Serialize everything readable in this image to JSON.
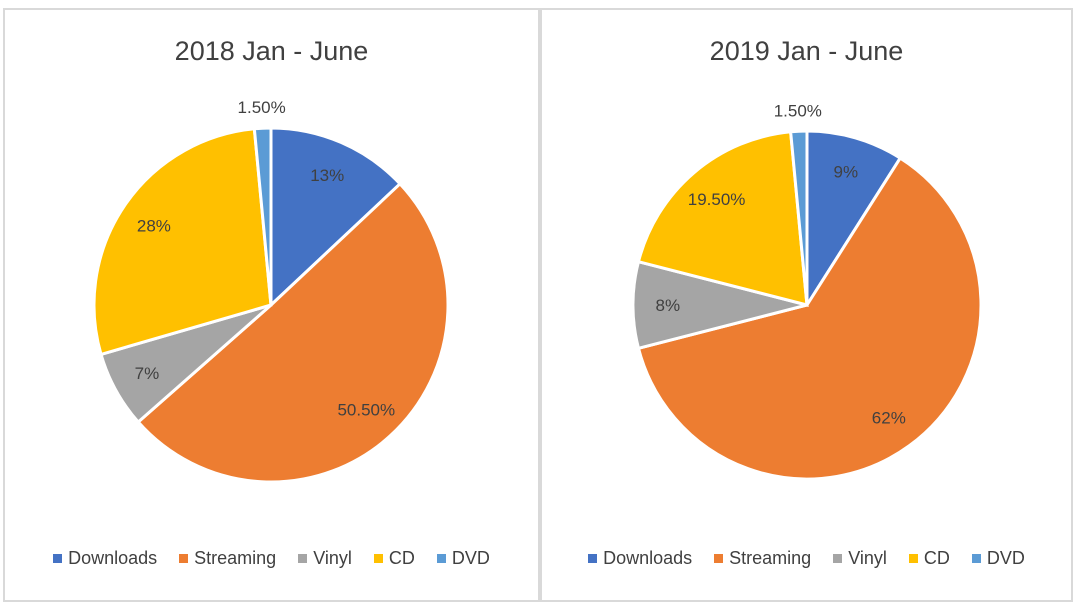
{
  "chart_data": [
    {
      "type": "pie",
      "title": "2018 Jan - June",
      "categories": [
        "Downloads",
        "Streaming",
        "Vinyl",
        "CD",
        "DVD"
      ],
      "values": [
        13,
        50.5,
        7,
        28,
        1.5
      ],
      "labels": [
        "13%",
        "50.50%",
        "7%",
        "28%",
        "1.50%"
      ],
      "legend": "bottom"
    },
    {
      "type": "pie",
      "title": "2019 Jan - June",
      "categories": [
        "Downloads",
        "Streaming",
        "Vinyl",
        "CD",
        "DVD"
      ],
      "values": [
        9,
        62,
        8,
        19.5,
        1.5
      ],
      "labels": [
        "9%",
        "62%",
        "8%",
        "19.50%",
        "1.50%"
      ],
      "legend": "bottom"
    }
  ],
  "colors": {
    "Downloads": "#4472C4",
    "Streaming": "#ED7D31",
    "Vinyl": "#A5A5A5",
    "CD": "#FFC000",
    "DVD": "#5B9BD5"
  }
}
